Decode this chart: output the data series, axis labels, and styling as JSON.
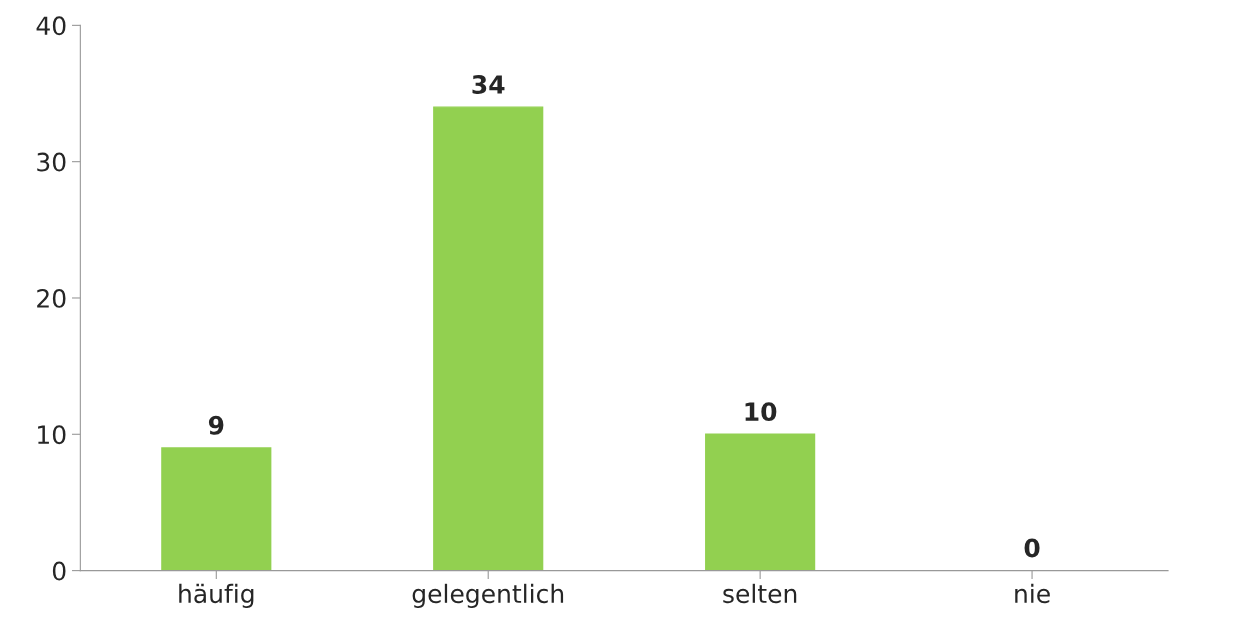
{
  "chart_data": {
    "type": "bar",
    "categories": [
      "häufig",
      "gelegentlich",
      "selten",
      "nie"
    ],
    "values": [
      9,
      34,
      10,
      0
    ],
    "color": "#92d050",
    "ylim": [
      0,
      40
    ],
    "yticks": [
      0,
      10,
      20,
      30,
      40
    ],
    "grid": false,
    "data_labels": true
  }
}
